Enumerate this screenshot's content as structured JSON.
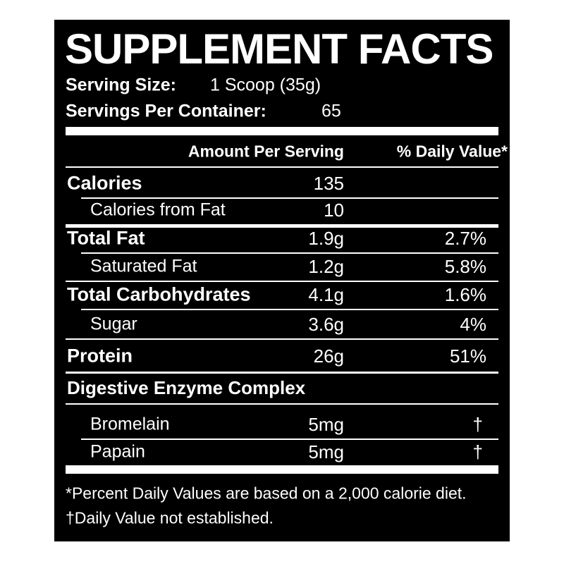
{
  "header": {
    "title": "SUPPLEMENT FACTS",
    "serving_size_label": "Serving Size:",
    "serving_size": "1 Scoop (35g)",
    "servings_label": "Servings Per Container:",
    "servings": "65"
  },
  "columns": {
    "amount": "Amount Per Serving",
    "daily_value": "% Daily Value*"
  },
  "rows": [
    {
      "name": "Calories",
      "amount": "135"
    },
    {
      "name": "Calories from Fat",
      "amount": "10"
    },
    {
      "name": "Total Fat",
      "amount": "1.9g",
      "dv": "2.7%"
    },
    {
      "name": "Saturated Fat",
      "amount": "1.2g",
      "dv": "5.8%"
    },
    {
      "name": "Total Carbohydrates",
      "amount": "4.1g",
      "dv": "1.6%"
    },
    {
      "name": "Sugar",
      "amount": "3.6g",
      "dv": "4%"
    },
    {
      "name": "Protein",
      "amount": "26g",
      "dv": "51%"
    }
  ],
  "enzyme": {
    "title": "Digestive Enzyme Complex",
    "rows": [
      {
        "name": "Bromelain",
        "amount": "5mg",
        "dv": "†"
      },
      {
        "name": "Papain",
        "amount": "5mg",
        "dv": "†"
      }
    ]
  },
  "footnotes": [
    "*Percent Daily Values are based on a 2,000 calorie diet.",
    "†Daily Value not established."
  ]
}
